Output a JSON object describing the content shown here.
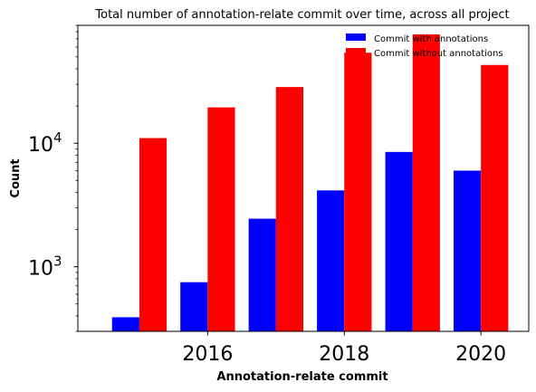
{
  "chart_data": {
    "type": "bar",
    "title": "Total number of annotation-relate commit over time, across all project",
    "xlabel": "Annotation-relate commit",
    "ylabel": "Count",
    "yscale": "log",
    "ylim": [
      300,
      90000
    ],
    "xlim": [
      2014.1,
      2020.7
    ],
    "x": [
      2015,
      2016,
      2017,
      2018,
      2019,
      2020
    ],
    "x_tick_labels": [
      "2016",
      "2018",
      "2020"
    ],
    "x_tick_values": [
      2016,
      2018,
      2020
    ],
    "y_tick_labels": [
      {
        "base": "10",
        "exp": "3",
        "value": 1000
      },
      {
        "base": "10",
        "exp": "4",
        "value": 10000
      }
    ],
    "grid": false,
    "legend_position": "top-right",
    "series": [
      {
        "name": "Commit with annotations",
        "color": "#0000ff",
        "values": [
          390,
          750,
          2450,
          4150,
          8500,
          6000
        ]
      },
      {
        "name": "Commit without annotations",
        "color": "#ff0000",
        "values": [
          11000,
          19500,
          28500,
          54000,
          76000,
          43000
        ]
      }
    ]
  }
}
